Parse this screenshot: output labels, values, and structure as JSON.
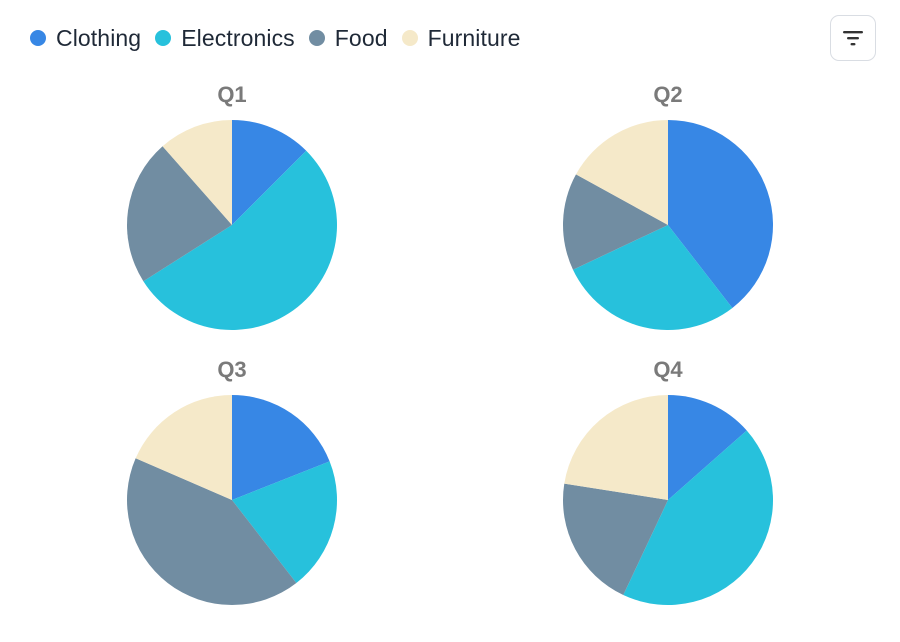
{
  "legend": {
    "items": [
      {
        "label": "Clothing",
        "color": "#3787e5"
      },
      {
        "label": "Electronics",
        "color": "#27c1dc"
      },
      {
        "label": "Food",
        "color": "#718da2"
      },
      {
        "label": "Furniture",
        "color": "#f5e9c9"
      }
    ]
  },
  "toolbar": {
    "filter_icon": "filter-icon"
  },
  "chart_data": {
    "type": "pie",
    "categories": [
      "Clothing",
      "Electronics",
      "Food",
      "Furniture"
    ],
    "colors": [
      "#3787e5",
      "#27c1dc",
      "#718da2",
      "#f5e9c9"
    ],
    "series": [
      {
        "name": "Q1",
        "values": [
          12.5,
          53.5,
          22.5,
          11.5
        ]
      },
      {
        "name": "Q2",
        "values": [
          39.5,
          28.5,
          15,
          17
        ]
      },
      {
        "name": "Q3",
        "values": [
          19,
          20.5,
          42,
          18.5
        ]
      },
      {
        "name": "Q4",
        "values": [
          13.5,
          43.5,
          20.5,
          22.5
        ]
      }
    ]
  }
}
